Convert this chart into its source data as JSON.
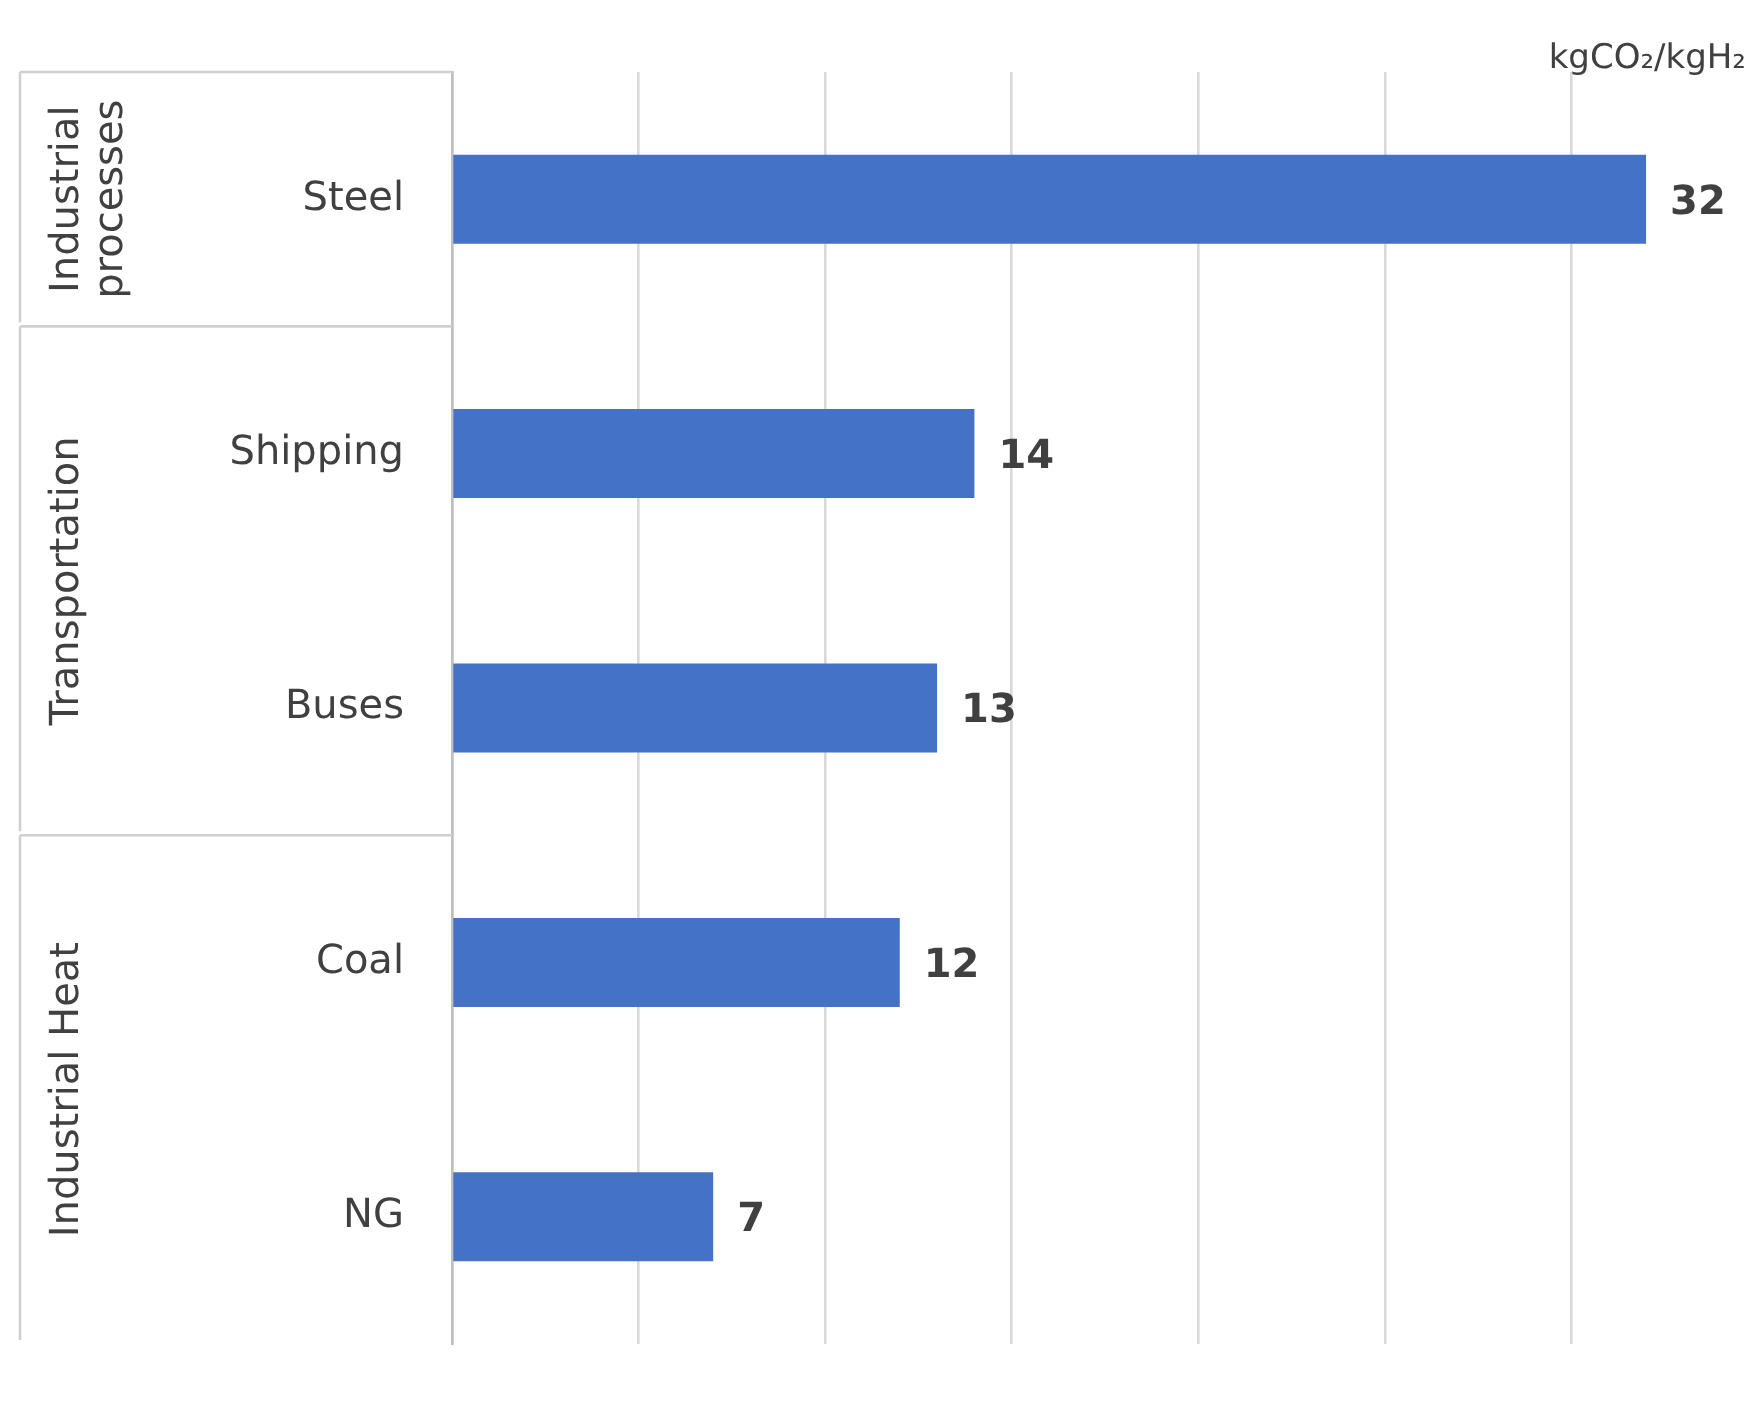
{
  "chart_data": {
    "type": "bar",
    "orientation": "horizontal",
    "xlabel": "kgCO₂/kgH₂",
    "categories": [
      "Steel",
      "Shipping",
      "Buses",
      "Coal",
      "NG"
    ],
    "values": [
      32,
      14,
      13,
      12,
      7
    ],
    "color": "#4472c4",
    "xticks": [
      {
        "value": 0,
        "label": null
      },
      {
        "value": 5,
        "label": null
      },
      {
        "value": 10,
        "label": null
      },
      {
        "value": 15,
        "label": null
      },
      {
        "value": 20,
        "label": null
      },
      {
        "value": 25,
        "label": null
      },
      {
        "value": 30,
        "label": null
      }
    ],
    "tick_labels": "y",
    "grid": "x",
    "legend": false,
    "data_labels": true,
    "annotations": [
      "Industrial processes",
      "Transportation",
      "Industrial Heat"
    ]
  }
}
